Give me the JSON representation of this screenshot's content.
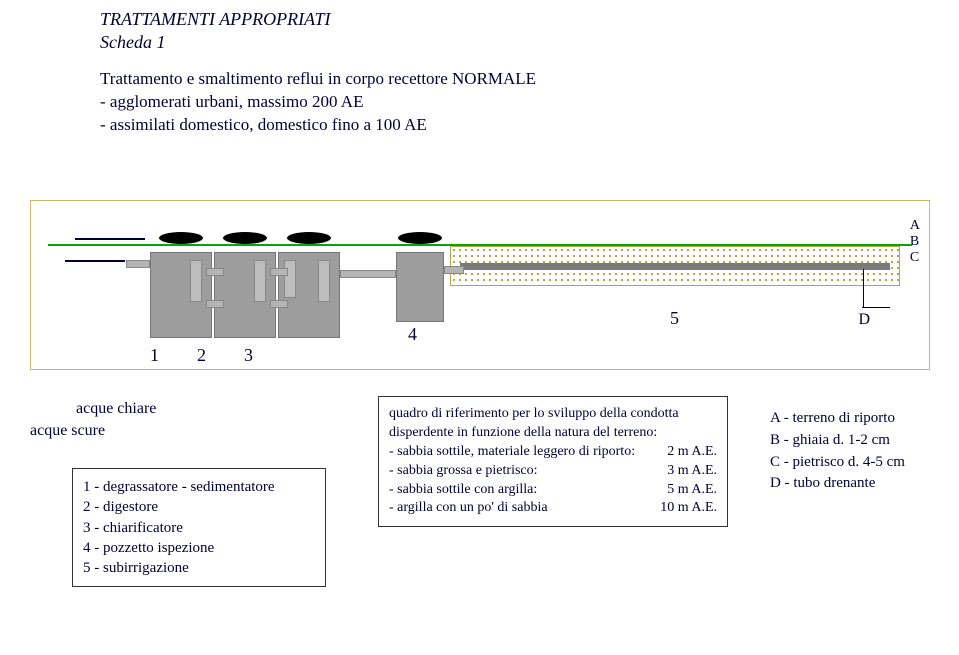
{
  "header": {
    "title": "TRATTAMENTI APPROPRIATI",
    "subtitle": "Scheda 1"
  },
  "desc": {
    "line1": "Trattamento e smaltimento reflui in corpo recettore NORMALE",
    "line2": "- agglomerati urbani, massimo 200 AE",
    "line3": "- assimilati domestico,  domestico fino a 100 AE"
  },
  "labels": {
    "A": "A",
    "B": "B",
    "C": "C",
    "D": "D",
    "n123": "123",
    "n4": "4",
    "n5": "5",
    "chiare": "acque chiare",
    "scure": "acque scure"
  },
  "legend": {
    "l1": "1 - degrassatore - sedimentatore",
    "l2": "2 - digestore",
    "l3": "3 - chiarificatore",
    "l4": "4 - pozzetto ispezione",
    "l5": "5 - subirrigazione"
  },
  "quadro": {
    "intro1": "quadro di riferimento per lo sviluppo della condotta",
    "intro2": "disperdente in funzione della natura del terreno:",
    "r1l": "- sabbia sottile, materiale leggero di riporto:",
    "r1r": "2 m A.E.",
    "r2l": "- sabbia grossa e pietrisco:",
    "r2r": "3 m A.E.",
    "r3l": "- sabbia sottile con argilla:",
    "r3r": "5 m A.E.",
    "r4l": "- argilla con un po' di sabbia",
    "r4r": "10 m A.E."
  },
  "strata": {
    "a": "A - terreno di riporto",
    "b": "B - ghiaia  d.  1-2 cm",
    "c": "C - pietrisco d.  4-5 cm",
    "d": "D - tubo drenante"
  },
  "style": {
    "ground_color": "#00aa00",
    "stratum_dot_color": "#b7a54d",
    "tank_color": "#9d9d9d",
    "text_color": "#000033",
    "body_bg": "#ffffff",
    "header_fontsize": 18,
    "desc_fontsize": 17,
    "num_fontsize": 18,
    "legend_fontsize": 15,
    "quadro_fontsize": 14,
    "right_fontsize": 15
  }
}
